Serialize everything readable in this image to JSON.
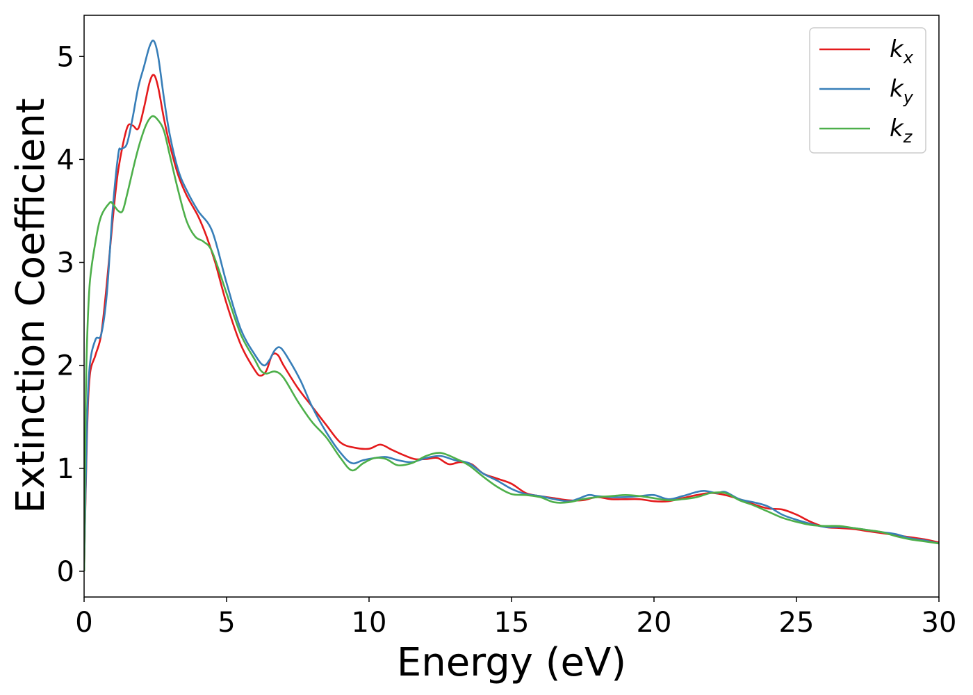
{
  "chart_data": {
    "type": "line",
    "title": "",
    "xlabel": "Energy (eV)",
    "ylabel": "Extinction Coefficient",
    "xlim": [
      0,
      30
    ],
    "ylim": [
      -0.25,
      5.4
    ],
    "xticks": [
      0,
      5,
      10,
      15,
      20,
      25,
      30
    ],
    "yticks": [
      0,
      1,
      2,
      3,
      4,
      5
    ],
    "xtick_labels": [
      "0",
      "5",
      "10",
      "15",
      "20",
      "25",
      "30"
    ],
    "ytick_labels": [
      "0",
      "1",
      "2",
      "3",
      "4",
      "5"
    ],
    "grid": false,
    "legend_position": "top-right",
    "series": [
      {
        "name": "k",
        "subscript": "x",
        "color": "#e41a1c",
        "points": [
          [
            0,
            0
          ],
          [
            0.1,
            1.3
          ],
          [
            0.2,
            1.9
          ],
          [
            0.4,
            2.1
          ],
          [
            0.6,
            2.3
          ],
          [
            0.8,
            2.8
          ],
          [
            1.0,
            3.4
          ],
          [
            1.2,
            3.9
          ],
          [
            1.5,
            4.3
          ],
          [
            1.7,
            4.33
          ],
          [
            1.9,
            4.3
          ],
          [
            2.1,
            4.5
          ],
          [
            2.3,
            4.75
          ],
          [
            2.45,
            4.82
          ],
          [
            2.6,
            4.7
          ],
          [
            2.8,
            4.4
          ],
          [
            3.0,
            4.15
          ],
          [
            3.3,
            3.85
          ],
          [
            3.6,
            3.65
          ],
          [
            4.0,
            3.45
          ],
          [
            4.3,
            3.25
          ],
          [
            4.6,
            3.0
          ],
          [
            5.0,
            2.6
          ],
          [
            5.5,
            2.2
          ],
          [
            6.0,
            1.95
          ],
          [
            6.2,
            1.9
          ],
          [
            6.4,
            1.95
          ],
          [
            6.6,
            2.1
          ],
          [
            6.8,
            2.1
          ],
          [
            7.0,
            2.0
          ],
          [
            7.5,
            1.78
          ],
          [
            8.0,
            1.6
          ],
          [
            8.5,
            1.42
          ],
          [
            9.0,
            1.25
          ],
          [
            9.5,
            1.2
          ],
          [
            10.0,
            1.19
          ],
          [
            10.4,
            1.23
          ],
          [
            10.8,
            1.18
          ],
          [
            11.2,
            1.13
          ],
          [
            11.6,
            1.09
          ],
          [
            12.0,
            1.09
          ],
          [
            12.4,
            1.1
          ],
          [
            12.8,
            1.04
          ],
          [
            13.2,
            1.06
          ],
          [
            13.6,
            1.04
          ],
          [
            14.0,
            0.95
          ],
          [
            14.5,
            0.9
          ],
          [
            15.0,
            0.85
          ],
          [
            15.5,
            0.76
          ],
          [
            16.0,
            0.73
          ],
          [
            16.5,
            0.71
          ],
          [
            17.0,
            0.69
          ],
          [
            17.5,
            0.69
          ],
          [
            18.0,
            0.72
          ],
          [
            18.5,
            0.7
          ],
          [
            19.0,
            0.7
          ],
          [
            19.5,
            0.7
          ],
          [
            20.0,
            0.68
          ],
          [
            20.5,
            0.68
          ],
          [
            21.0,
            0.71
          ],
          [
            21.5,
            0.74
          ],
          [
            22.0,
            0.76
          ],
          [
            22.5,
            0.74
          ],
          [
            23.0,
            0.7
          ],
          [
            23.5,
            0.65
          ],
          [
            24.0,
            0.61
          ],
          [
            24.5,
            0.6
          ],
          [
            25.0,
            0.55
          ],
          [
            25.5,
            0.48
          ],
          [
            26.0,
            0.43
          ],
          [
            26.5,
            0.42
          ],
          [
            27.0,
            0.41
          ],
          [
            27.5,
            0.39
          ],
          [
            28.0,
            0.37
          ],
          [
            28.5,
            0.35
          ],
          [
            29.0,
            0.33
          ],
          [
            29.5,
            0.31
          ],
          [
            30.0,
            0.28
          ]
        ]
      },
      {
        "name": "k",
        "subscript": "y",
        "color": "#377eb8",
        "points": [
          [
            0,
            0
          ],
          [
            0.1,
            1.4
          ],
          [
            0.2,
            2.0
          ],
          [
            0.4,
            2.25
          ],
          [
            0.6,
            2.3
          ],
          [
            0.8,
            2.7
          ],
          [
            1.0,
            3.5
          ],
          [
            1.2,
            4.05
          ],
          [
            1.3,
            4.1
          ],
          [
            1.5,
            4.15
          ],
          [
            1.7,
            4.4
          ],
          [
            1.9,
            4.7
          ],
          [
            2.1,
            4.9
          ],
          [
            2.3,
            5.1
          ],
          [
            2.45,
            5.15
          ],
          [
            2.6,
            5.0
          ],
          [
            2.8,
            4.6
          ],
          [
            3.0,
            4.25
          ],
          [
            3.3,
            3.9
          ],
          [
            3.6,
            3.7
          ],
          [
            4.0,
            3.5
          ],
          [
            4.5,
            3.3
          ],
          [
            5.0,
            2.8
          ],
          [
            5.5,
            2.35
          ],
          [
            6.0,
            2.1
          ],
          [
            6.3,
            2.0
          ],
          [
            6.5,
            2.05
          ],
          [
            6.7,
            2.15
          ],
          [
            6.9,
            2.17
          ],
          [
            7.2,
            2.05
          ],
          [
            7.6,
            1.85
          ],
          [
            8.0,
            1.6
          ],
          [
            8.5,
            1.35
          ],
          [
            9.0,
            1.15
          ],
          [
            9.4,
            1.05
          ],
          [
            9.8,
            1.08
          ],
          [
            10.2,
            1.1
          ],
          [
            10.6,
            1.11
          ],
          [
            11.0,
            1.08
          ],
          [
            11.5,
            1.06
          ],
          [
            12.0,
            1.1
          ],
          [
            12.5,
            1.12
          ],
          [
            13.0,
            1.08
          ],
          [
            13.5,
            1.05
          ],
          [
            14.0,
            0.95
          ],
          [
            14.5,
            0.88
          ],
          [
            15.0,
            0.8
          ],
          [
            15.5,
            0.75
          ],
          [
            16.0,
            0.73
          ],
          [
            16.5,
            0.7
          ],
          [
            17.0,
            0.68
          ],
          [
            17.3,
            0.7
          ],
          [
            17.7,
            0.74
          ],
          [
            18.0,
            0.73
          ],
          [
            18.5,
            0.72
          ],
          [
            19.0,
            0.72
          ],
          [
            19.5,
            0.73
          ],
          [
            20.0,
            0.74
          ],
          [
            20.5,
            0.7
          ],
          [
            21.0,
            0.73
          ],
          [
            21.5,
            0.77
          ],
          [
            21.8,
            0.78
          ],
          [
            22.2,
            0.76
          ],
          [
            22.5,
            0.77
          ],
          [
            23.0,
            0.7
          ],
          [
            23.5,
            0.67
          ],
          [
            24.0,
            0.63
          ],
          [
            24.5,
            0.55
          ],
          [
            25.0,
            0.5
          ],
          [
            25.5,
            0.46
          ],
          [
            26.0,
            0.43
          ],
          [
            26.5,
            0.43
          ],
          [
            27.0,
            0.42
          ],
          [
            27.5,
            0.4
          ],
          [
            28.0,
            0.38
          ],
          [
            28.5,
            0.36
          ],
          [
            29.0,
            0.32
          ],
          [
            29.5,
            0.3
          ],
          [
            30.0,
            0.27
          ]
        ]
      },
      {
        "name": "k",
        "subscript": "z",
        "color": "#4daf4a",
        "points": [
          [
            0,
            0
          ],
          [
            0.05,
            1.5
          ],
          [
            0.1,
            2.2
          ],
          [
            0.2,
            2.8
          ],
          [
            0.4,
            3.2
          ],
          [
            0.6,
            3.45
          ],
          [
            0.9,
            3.58
          ],
          [
            1.0,
            3.57
          ],
          [
            1.2,
            3.5
          ],
          [
            1.35,
            3.5
          ],
          [
            1.5,
            3.65
          ],
          [
            1.8,
            4.0
          ],
          [
            2.0,
            4.2
          ],
          [
            2.2,
            4.35
          ],
          [
            2.4,
            4.42
          ],
          [
            2.6,
            4.38
          ],
          [
            2.8,
            4.28
          ],
          [
            3.0,
            4.05
          ],
          [
            3.3,
            3.7
          ],
          [
            3.6,
            3.4
          ],
          [
            3.9,
            3.25
          ],
          [
            4.2,
            3.2
          ],
          [
            4.5,
            3.1
          ],
          [
            5.0,
            2.7
          ],
          [
            5.5,
            2.3
          ],
          [
            6.0,
            2.05
          ],
          [
            6.2,
            1.95
          ],
          [
            6.4,
            1.92
          ],
          [
            6.7,
            1.94
          ],
          [
            7.0,
            1.88
          ],
          [
            7.5,
            1.65
          ],
          [
            8.0,
            1.45
          ],
          [
            8.5,
            1.3
          ],
          [
            9.0,
            1.1
          ],
          [
            9.4,
            0.98
          ],
          [
            9.8,
            1.05
          ],
          [
            10.2,
            1.1
          ],
          [
            10.6,
            1.09
          ],
          [
            11.0,
            1.03
          ],
          [
            11.5,
            1.05
          ],
          [
            12.0,
            1.12
          ],
          [
            12.5,
            1.15
          ],
          [
            13.0,
            1.1
          ],
          [
            13.5,
            1.03
          ],
          [
            14.0,
            0.92
          ],
          [
            14.5,
            0.82
          ],
          [
            15.0,
            0.75
          ],
          [
            15.5,
            0.74
          ],
          [
            16.0,
            0.72
          ],
          [
            16.5,
            0.67
          ],
          [
            17.0,
            0.67
          ],
          [
            17.5,
            0.7
          ],
          [
            18.0,
            0.72
          ],
          [
            18.5,
            0.73
          ],
          [
            19.0,
            0.74
          ],
          [
            19.5,
            0.73
          ],
          [
            20.0,
            0.71
          ],
          [
            20.5,
            0.69
          ],
          [
            21.0,
            0.7
          ],
          [
            21.5,
            0.72
          ],
          [
            22.0,
            0.76
          ],
          [
            22.5,
            0.76
          ],
          [
            23.0,
            0.69
          ],
          [
            23.5,
            0.64
          ],
          [
            24.0,
            0.58
          ],
          [
            24.5,
            0.52
          ],
          [
            25.0,
            0.48
          ],
          [
            25.5,
            0.45
          ],
          [
            26.0,
            0.44
          ],
          [
            26.5,
            0.44
          ],
          [
            27.0,
            0.42
          ],
          [
            27.5,
            0.4
          ],
          [
            28.0,
            0.38
          ],
          [
            28.5,
            0.34
          ],
          [
            29.0,
            0.31
          ],
          [
            29.5,
            0.29
          ],
          [
            30.0,
            0.27
          ]
        ]
      }
    ]
  }
}
